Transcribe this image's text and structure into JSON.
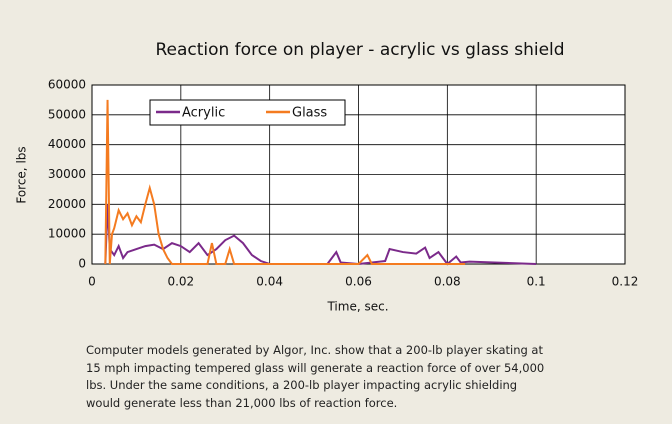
{
  "chart_data": {
    "type": "line",
    "title": "Reaction force on player - acrylic vs glass shield",
    "xlabel": "Time, sec.",
    "ylabel": "Force, lbs",
    "xlim": [
      0,
      0.12
    ],
    "xticks": [
      0,
      0.02,
      0.04,
      0.06,
      0.08,
      0.1,
      0.12
    ],
    "ylim": [
      0,
      60000
    ],
    "yticks": [
      0,
      10000,
      20000,
      30000,
      40000,
      50000,
      60000
    ],
    "grid": true,
    "legend": "top",
    "series": [
      {
        "name": "Acrylic",
        "color": "#7b2a8a",
        "x": [
          0.003,
          0.0035,
          0.004,
          0.005,
          0.006,
          0.007,
          0.008,
          0.01,
          0.012,
          0.014,
          0.016,
          0.018,
          0.02,
          0.022,
          0.024,
          0.026,
          0.028,
          0.03,
          0.032,
          0.034,
          0.036,
          0.038,
          0.04,
          0.053,
          0.055,
          0.056,
          0.06,
          0.066,
          0.067,
          0.07,
          0.073,
          0.075,
          0.076,
          0.078,
          0.08,
          0.082,
          0.083,
          0.085,
          0.1
        ],
        "values": [
          0,
          20000,
          5000,
          3000,
          6000,
          2000,
          4000,
          5000,
          6000,
          6500,
          5000,
          7000,
          6000,
          4000,
          7000,
          3000,
          5000,
          8000,
          9500,
          7000,
          3000,
          1000,
          0,
          0,
          4000,
          500,
          0,
          1000,
          5000,
          4000,
          3500,
          5500,
          2000,
          4000,
          0,
          2500,
          500,
          800,
          0
        ]
      },
      {
        "name": "Glass",
        "color": "#f47b20",
        "x": [
          0.003,
          0.0035,
          0.004,
          0.0045,
          0.005,
          0.006,
          0.007,
          0.008,
          0.009,
          0.01,
          0.011,
          0.012,
          0.013,
          0.014,
          0.015,
          0.016,
          0.017,
          0.018,
          0.026,
          0.027,
          0.028,
          0.03,
          0.031,
          0.032,
          0.06,
          0.062,
          0.063,
          0.084
        ],
        "values": [
          0,
          55000,
          0,
          10000,
          12000,
          18000,
          15000,
          17000,
          13000,
          16000,
          14000,
          20000,
          25500,
          20000,
          10000,
          5000,
          2000,
          0,
          0,
          7000,
          0,
          0,
          5000,
          0,
          0,
          3000,
          0,
          0
        ]
      }
    ]
  },
  "caption": [
    "Computer models generated by Algor, Inc. show that a 200-lb player skating at",
    "15 mph impacting tempered glass will generate a reaction force of over 54,000",
    "lbs. Under the same conditions, a 200-lb player impacting acrylic shielding",
    "would generate less than 21,000 lbs of reaction force."
  ]
}
